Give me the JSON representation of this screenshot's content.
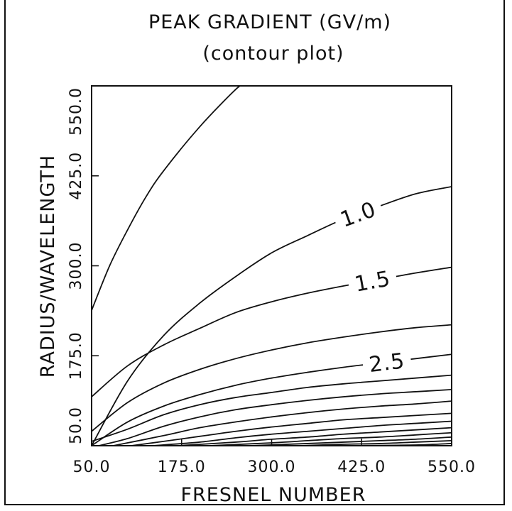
{
  "chart_data": {
    "type": "contour",
    "title": "PEAK GRADIENT (GV/m)",
    "subtitle": "(contour plot)",
    "xlabel": "FRESNEL NUMBER",
    "ylabel": "RADIUS/WAVELENGTH",
    "xlim": [
      50.0,
      550.0
    ],
    "ylim": [
      50.0,
      550.0
    ],
    "x_ticks": [
      "50.0",
      "175.0",
      "300.0",
      "425.0",
      "550.0"
    ],
    "y_ticks": [
      "50.0",
      "175.0",
      "300.0",
      "425.0",
      "550.0"
    ],
    "grid": false,
    "contours": [
      {
        "label": "",
        "points": [
          [
            50,
            238
          ],
          [
            75,
            300
          ],
          [
            100,
            350
          ],
          [
            125,
            395
          ],
          [
            150,
            432
          ],
          [
            200,
            493
          ],
          [
            250,
            545
          ],
          [
            260,
            550
          ]
        ]
      },
      {
        "label": "1.0",
        "points": [
          [
            50,
            50
          ],
          [
            100,
            140
          ],
          [
            150,
            203
          ],
          [
            200,
            248
          ],
          [
            250,
            285
          ],
          [
            300,
            318
          ],
          [
            350,
            342
          ],
          [
            400,
            365
          ],
          [
            450,
            383
          ],
          [
            500,
            400
          ],
          [
            550,
            410
          ]
        ]
      },
      {
        "label": "1.5",
        "points": [
          [
            50,
            118
          ],
          [
            100,
            161
          ],
          [
            150,
            190
          ],
          [
            200,
            213
          ],
          [
            250,
            235
          ],
          [
            300,
            250
          ],
          [
            350,
            262
          ],
          [
            400,
            272
          ],
          [
            450,
            281
          ],
          [
            500,
            290
          ],
          [
            550,
            298
          ]
        ]
      },
      {
        "label": "",
        "points": [
          [
            50,
            70
          ],
          [
            100,
            110
          ],
          [
            150,
            137
          ],
          [
            200,
            156
          ],
          [
            250,
            171
          ],
          [
            300,
            183
          ],
          [
            350,
            193
          ],
          [
            400,
            201
          ],
          [
            450,
            208
          ],
          [
            500,
            214
          ],
          [
            550,
            218
          ]
        ]
      },
      {
        "label": "2.5",
        "points": [
          [
            50,
            50
          ],
          [
            100,
            83
          ],
          [
            150,
            105
          ],
          [
            200,
            121
          ],
          [
            250,
            134
          ],
          [
            300,
            144
          ],
          [
            350,
            152
          ],
          [
            400,
            159
          ],
          [
            450,
            165
          ],
          [
            500,
            171
          ],
          [
            550,
            177
          ]
        ]
      },
      {
        "label": "",
        "points": [
          [
            50,
            56
          ],
          [
            100,
            73
          ],
          [
            150,
            93
          ],
          [
            200,
            107
          ],
          [
            250,
            117
          ],
          [
            300,
            124
          ],
          [
            350,
            131
          ],
          [
            400,
            136
          ],
          [
            450,
            140
          ],
          [
            500,
            144
          ],
          [
            550,
            148
          ]
        ]
      },
      {
        "label": "",
        "points": [
          [
            60,
            50
          ],
          [
            100,
            60
          ],
          [
            150,
            77
          ],
          [
            200,
            90
          ],
          [
            250,
            100
          ],
          [
            300,
            107
          ],
          [
            350,
            113
          ],
          [
            400,
            118
          ],
          [
            450,
            122
          ],
          [
            500,
            125
          ],
          [
            550,
            128
          ]
        ]
      },
      {
        "label": "",
        "points": [
          [
            80,
            50
          ],
          [
            150,
            64
          ],
          [
            200,
            75
          ],
          [
            250,
            83
          ],
          [
            300,
            90
          ],
          [
            350,
            96
          ],
          [
            400,
            101
          ],
          [
            450,
            105
          ],
          [
            500,
            108
          ],
          [
            550,
            112
          ]
        ]
      },
      {
        "label": "",
        "points": [
          [
            105,
            50
          ],
          [
            150,
            56
          ],
          [
            200,
            63
          ],
          [
            250,
            70
          ],
          [
            300,
            76
          ],
          [
            350,
            81
          ],
          [
            400,
            86
          ],
          [
            450,
            89
          ],
          [
            500,
            92
          ],
          [
            550,
            95
          ]
        ]
      },
      {
        "label": "",
        "points": [
          [
            135,
            50
          ],
          [
            200,
            55
          ],
          [
            250,
            61
          ],
          [
            300,
            66
          ],
          [
            350,
            70
          ],
          [
            400,
            74
          ],
          [
            450,
            78
          ],
          [
            500,
            81
          ],
          [
            550,
            84
          ]
        ]
      },
      {
        "label": "",
        "points": [
          [
            170,
            50
          ],
          [
            250,
            55
          ],
          [
            300,
            59
          ],
          [
            350,
            62
          ],
          [
            400,
            66
          ],
          [
            450,
            69
          ],
          [
            500,
            72
          ],
          [
            550,
            75
          ]
        ]
      },
      {
        "label": "",
        "points": [
          [
            215,
            50
          ],
          [
            300,
            54
          ],
          [
            350,
            57
          ],
          [
            400,
            60
          ],
          [
            450,
            62
          ],
          [
            500,
            65
          ],
          [
            550,
            68
          ]
        ]
      },
      {
        "label": "",
        "points": [
          [
            270,
            50
          ],
          [
            350,
            53
          ],
          [
            400,
            55
          ],
          [
            450,
            57
          ],
          [
            500,
            59
          ],
          [
            550,
            62
          ]
        ]
      },
      {
        "label": "",
        "points": [
          [
            340,
            50
          ],
          [
            400,
            52
          ],
          [
            450,
            53
          ],
          [
            500,
            55
          ],
          [
            550,
            57
          ]
        ]
      },
      {
        "label": "",
        "points": [
          [
            420,
            50
          ],
          [
            500,
            51
          ],
          [
            550,
            53
          ]
        ]
      }
    ]
  }
}
